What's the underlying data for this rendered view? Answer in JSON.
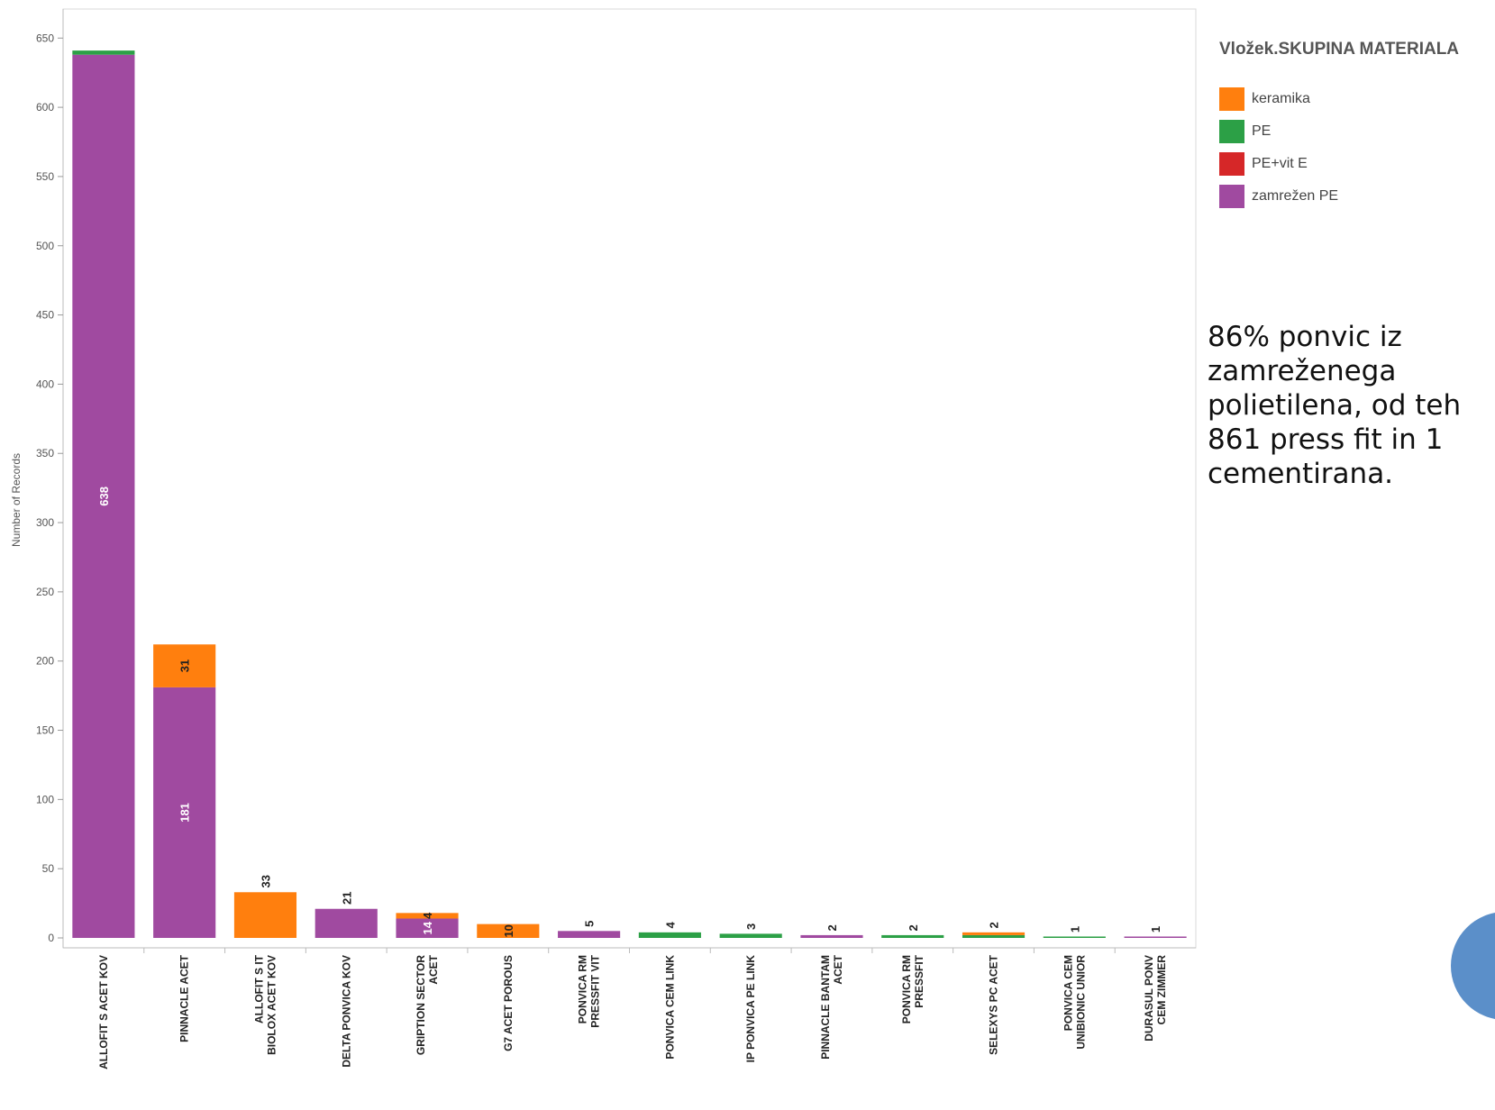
{
  "chart_data": {
    "type": "bar",
    "stacked": true,
    "title": "",
    "ylabel": "Number of Records",
    "xlabel": "",
    "ylim": [
      0,
      650
    ],
    "yticks": [
      0,
      50,
      100,
      150,
      200,
      250,
      300,
      350,
      400,
      450,
      500,
      550,
      600,
      650
    ],
    "grid": false,
    "categories": [
      "ALLOFIT S ACET KOV",
      "PINNACLE ACET",
      "ALLOFIT S IT\nBIOLOX ACET KOV",
      "DELTA PONVICA KOV",
      "GRIPTION SECTOR\nACET",
      "G7 ACET POROUS",
      "PONVICA RM\nPRESSFIT VIT",
      "PONVICA CEM LINK",
      "IP PONVICA PE LINK",
      "PINNACLE BANTAM\nACET",
      "PONVICA RM\nPRESSFIT",
      "SELEXYS PC ACET",
      "PONVICA CEM\nUNIBIONIC UNIOR",
      "DURASUL PONV\nCEM ZIMMER"
    ],
    "series": [
      {
        "name": "zamrežen PE",
        "color": "#a04aa0",
        "values": [
          638,
          181,
          0,
          21,
          14,
          0,
          5,
          0,
          0,
          2,
          0,
          0,
          0,
          1
        ]
      },
      {
        "name": "PE+vit E",
        "color": "#d62728",
        "values": [
          0,
          0,
          0,
          0,
          0,
          0,
          0,
          0,
          0,
          0,
          0,
          0,
          0,
          0
        ]
      },
      {
        "name": "PE",
        "color": "#2ca046",
        "values": [
          3,
          0,
          0,
          0,
          0,
          0,
          0,
          4,
          3,
          0,
          2,
          2,
          1,
          0
        ]
      },
      {
        "name": "keramika",
        "color": "#ff7f0e",
        "values": [
          0,
          31,
          33,
          0,
          4,
          10,
          0,
          0,
          0,
          0,
          0,
          2,
          0,
          0
        ]
      }
    ],
    "data_labels": [
      {
        "category": 0,
        "series": "zamrežen PE",
        "text": "638",
        "inside": true
      },
      {
        "category": 1,
        "series": "zamrežen PE",
        "text": "181",
        "inside": true
      },
      {
        "category": 1,
        "series": "keramika",
        "text": "31",
        "inside": true
      },
      {
        "category": 2,
        "series": "keramika",
        "text": "33",
        "inside": false
      },
      {
        "category": 3,
        "series": "zamrežen PE",
        "text": "21",
        "inside": false
      },
      {
        "category": 4,
        "series": "zamrežen PE",
        "text": "14",
        "inside": true
      },
      {
        "category": 4,
        "series": "keramika",
        "text": "4",
        "inside": true
      },
      {
        "category": 5,
        "series": "keramika",
        "text": "10",
        "inside": true
      },
      {
        "category": 6,
        "series": "zamrežen PE",
        "text": "5",
        "inside": false
      },
      {
        "category": 7,
        "series": "PE",
        "text": "4",
        "inside": false
      },
      {
        "category": 8,
        "series": "PE",
        "text": "3",
        "inside": false
      },
      {
        "category": 9,
        "series": "zamrežen PE",
        "text": "2",
        "inside": false
      },
      {
        "category": 10,
        "series": "PE",
        "text": "2",
        "inside": false
      },
      {
        "category": 11,
        "series": "keramika",
        "text": "2",
        "inside": false
      },
      {
        "category": 12,
        "series": "PE",
        "text": "1",
        "inside": false
      },
      {
        "category": 13,
        "series": "zamrežen PE",
        "text": "1",
        "inside": false
      }
    ],
    "legend": {
      "title": "Vložek.SKUPINA MATERIALA",
      "placement": "right",
      "items": [
        {
          "label": "keramika",
          "color": "#ff7f0e"
        },
        {
          "label": "PE",
          "color": "#2ca046"
        },
        {
          "label": "PE+vit E",
          "color": "#d62728"
        },
        {
          "label": "zamrežen PE",
          "color": "#a04aa0"
        }
      ]
    }
  },
  "note": {
    "text": "86% ponvic iz\nzamreženega\npolietilena, od teh\n861 press fit in 1\ncementirana."
  }
}
